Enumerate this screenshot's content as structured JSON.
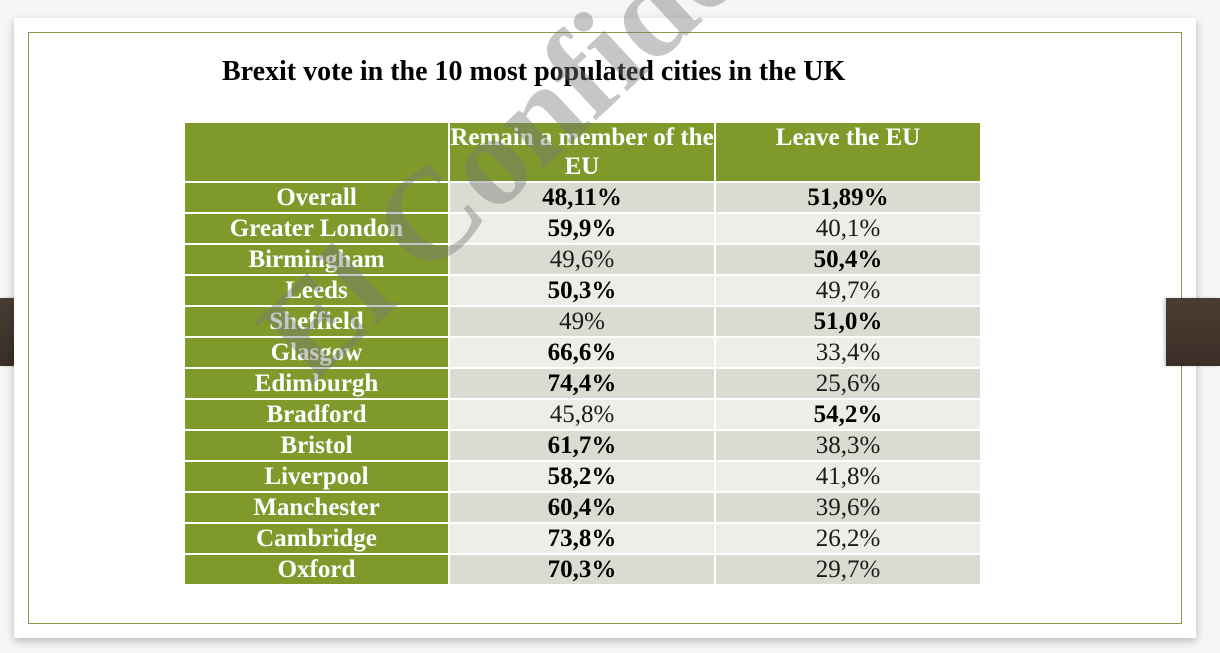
{
  "title": "Brexit vote in the 10 most populated cities in the UK",
  "table": {
    "headers": {
      "corner": "",
      "remain": "Remain a member of the EU",
      "leave": "Leave the EU"
    },
    "rows": [
      {
        "city": "Overall",
        "remain": "48,11%",
        "leave": "51,89%",
        "remain_bold": true,
        "leave_bold": true
      },
      {
        "city": "Greater London",
        "remain": "59,9%",
        "leave": "40,1%",
        "remain_bold": true,
        "leave_bold": false
      },
      {
        "city": "Birmingham",
        "remain": "49,6%",
        "leave": "50,4%",
        "remain_bold": false,
        "leave_bold": true
      },
      {
        "city": "Leeds",
        "remain": "50,3%",
        "leave": "49,7%",
        "remain_bold": true,
        "leave_bold": false
      },
      {
        "city": "Sheffield",
        "remain": "49%",
        "leave": "51,0%",
        "remain_bold": false,
        "leave_bold": true
      },
      {
        "city": "Glasgow",
        "remain": "66,6%",
        "leave": "33,4%",
        "remain_bold": true,
        "leave_bold": false
      },
      {
        "city": "Edimburgh",
        "remain": "74,4%",
        "leave": "25,6%",
        "remain_bold": true,
        "leave_bold": false
      },
      {
        "city": "Bradford",
        "remain": "45,8%",
        "leave": "54,2%",
        "remain_bold": false,
        "leave_bold": true
      },
      {
        "city": "Bristol",
        "remain": "61,7%",
        "leave": "38,3%",
        "remain_bold": true,
        "leave_bold": false
      },
      {
        "city": "Liverpool",
        "remain": "58,2%",
        "leave": "41,8%",
        "remain_bold": true,
        "leave_bold": false
      },
      {
        "city": "Manchester",
        "remain": "60,4%",
        "leave": "39,6%",
        "remain_bold": true,
        "leave_bold": false
      },
      {
        "city": "Cambridge",
        "remain": "73,8%",
        "leave": "26,2%",
        "remain_bold": true,
        "leave_bold": false
      },
      {
        "city": "Oxford",
        "remain": "70,3%",
        "leave": "29,7%",
        "remain_bold": true,
        "leave_bold": false
      }
    ]
  },
  "watermark": "El Confidencial",
  "colors": {
    "header_green": "#7f9a2b",
    "row_dark": "#d9dcd1",
    "row_light": "#eceee7",
    "frame": "#8a9a4a"
  }
}
